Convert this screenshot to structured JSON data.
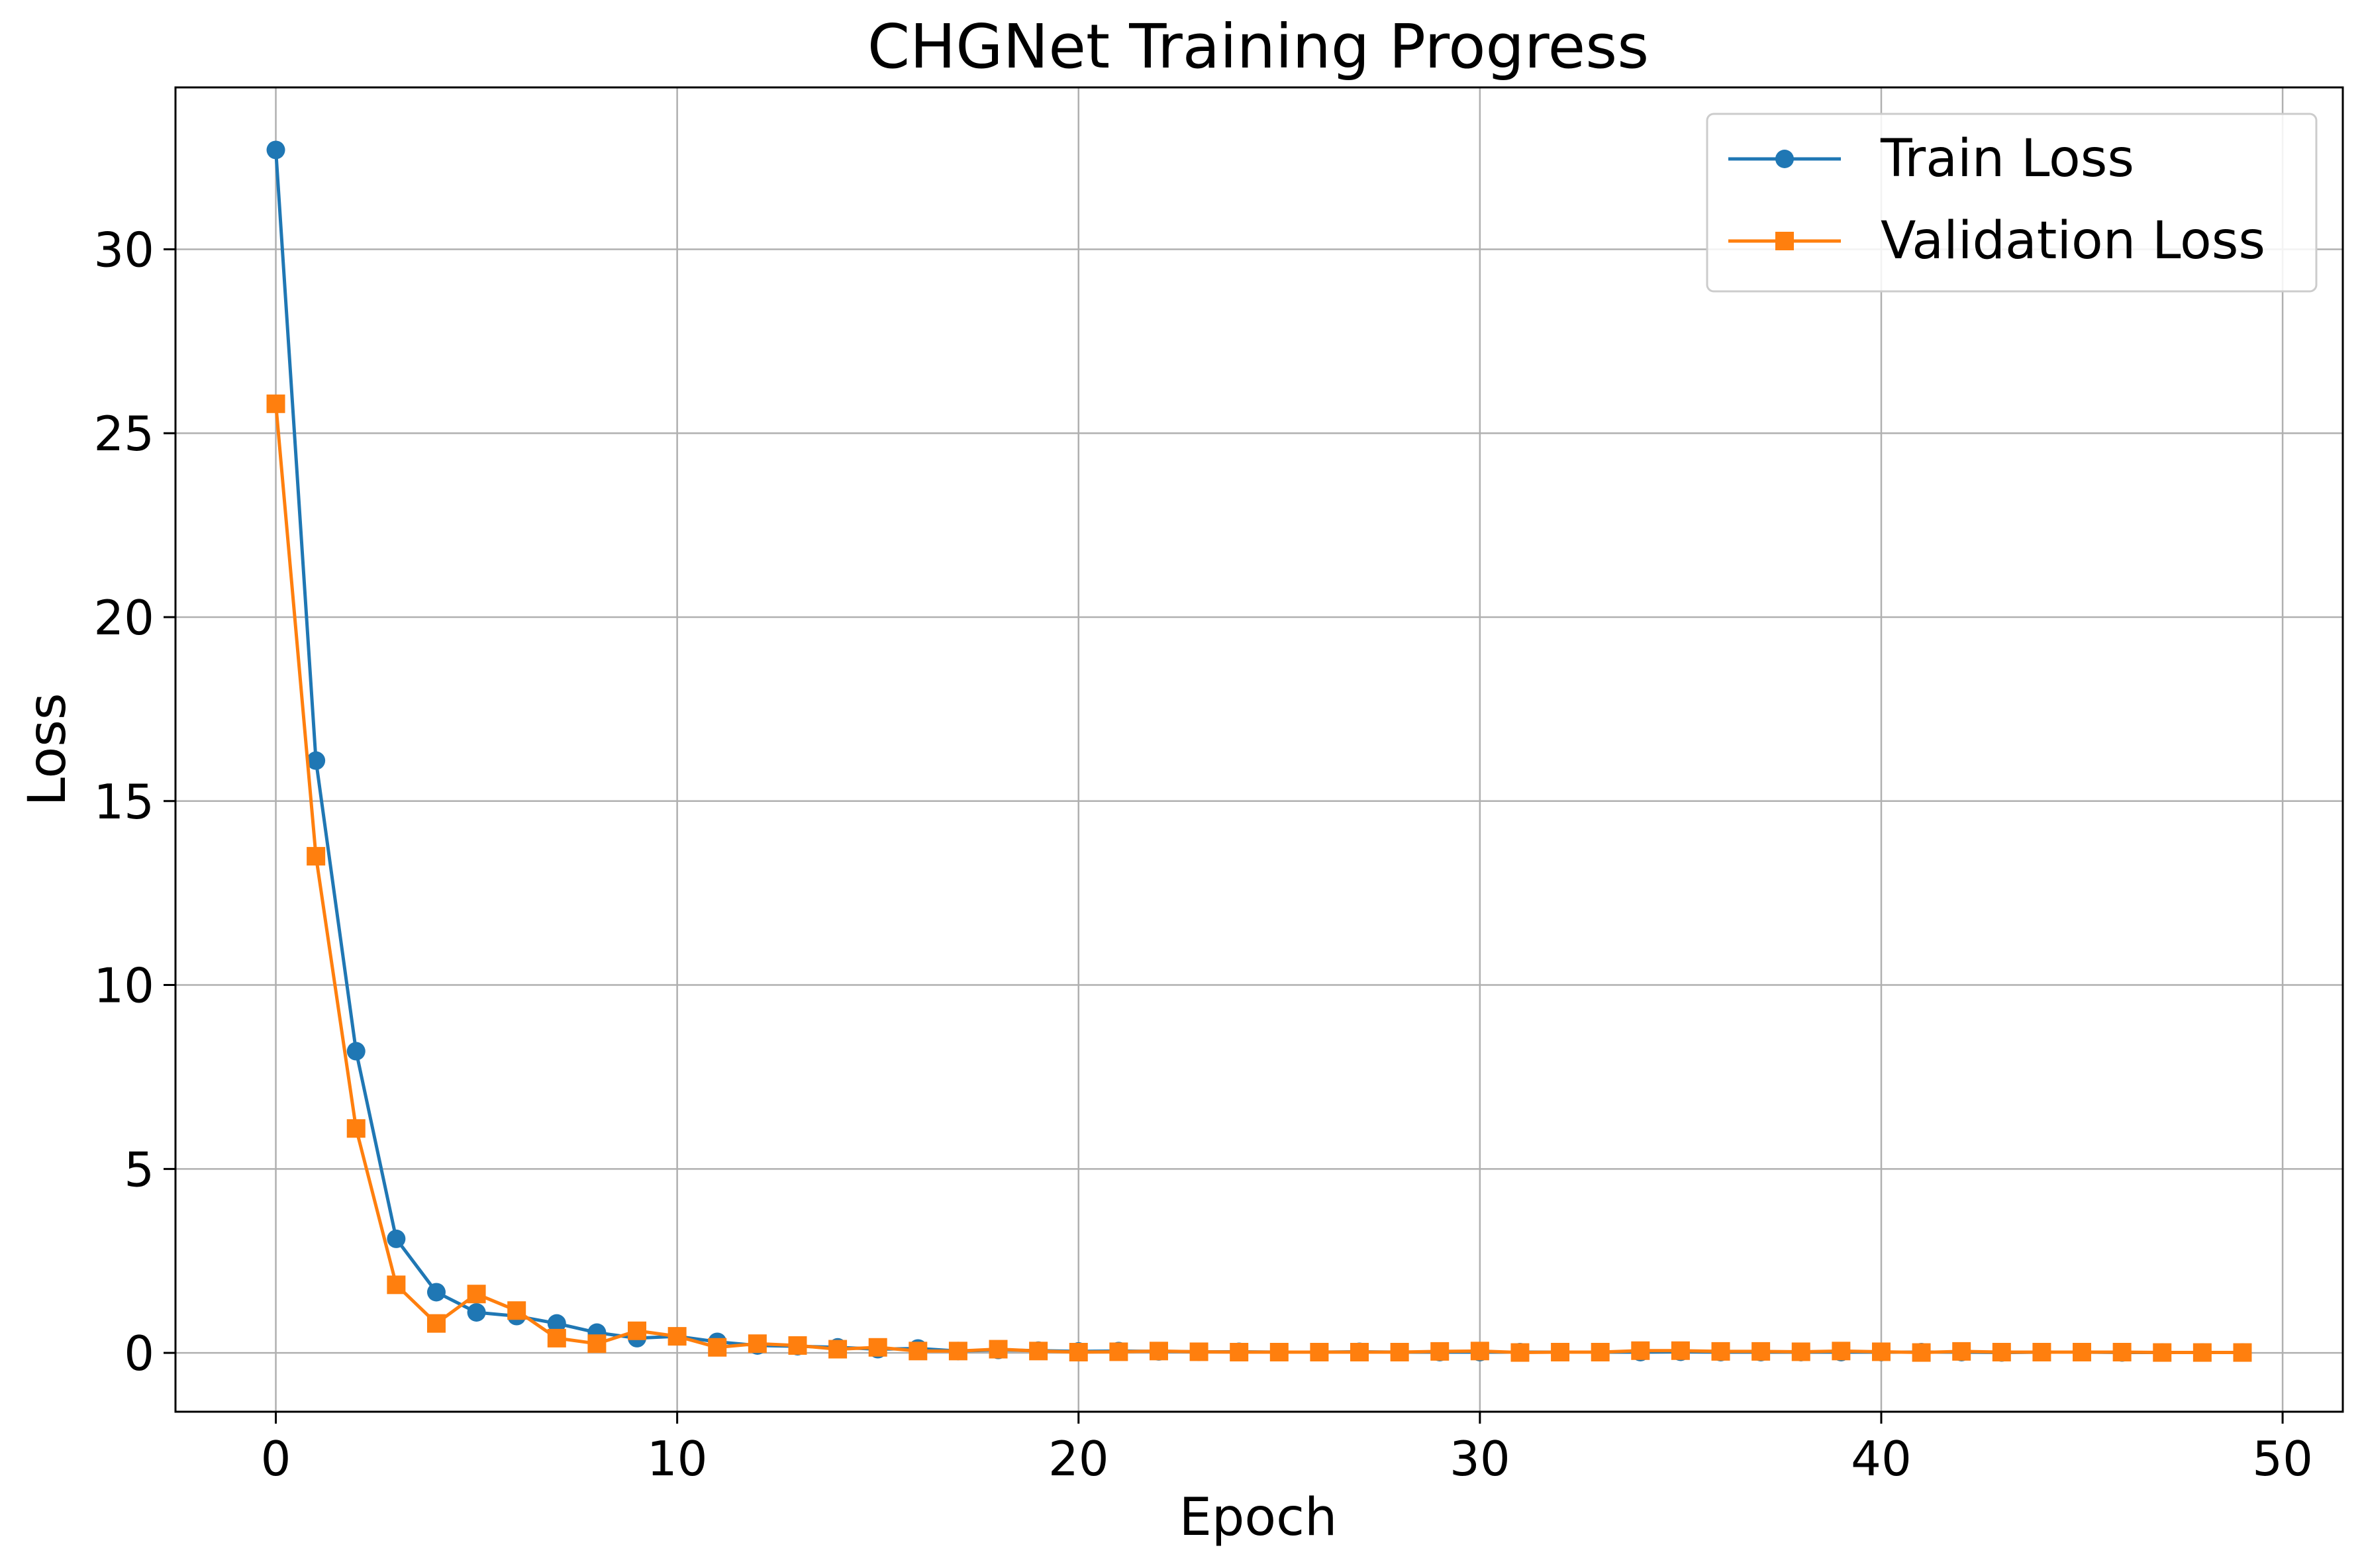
{
  "chart_data": {
    "type": "line",
    "title": "CHGNet Training Progress",
    "xlabel": "Epoch",
    "ylabel": "Loss",
    "xlim": [
      -2.5,
      51.5
    ],
    "ylim": [
      -1.6,
      34.4
    ],
    "xticks": [
      0,
      10,
      20,
      30,
      40,
      50
    ],
    "yticks": [
      0,
      5,
      10,
      15,
      20,
      25,
      30
    ],
    "grid": true,
    "legend_position": "top-right",
    "x": [
      0,
      1,
      2,
      3,
      4,
      5,
      6,
      7,
      8,
      9,
      10,
      11,
      12,
      13,
      14,
      15,
      16,
      17,
      18,
      19,
      20,
      21,
      22,
      23,
      24,
      25,
      26,
      27,
      28,
      29,
      30,
      31,
      32,
      33,
      34,
      35,
      36,
      37,
      38,
      39,
      40,
      41,
      42,
      43,
      44,
      45,
      46,
      47,
      48,
      49
    ],
    "series": [
      {
        "name": "Train Loss",
        "color": "#1f77b4",
        "marker": "circle",
        "values": [
          32.7,
          16.1,
          8.2,
          3.1,
          1.65,
          1.1,
          1.0,
          0.8,
          0.55,
          0.4,
          0.45,
          0.3,
          0.2,
          0.18,
          0.15,
          0.1,
          0.12,
          0.05,
          0.08,
          0.06,
          0.04,
          0.05,
          0.04,
          0.03,
          0.03,
          0.02,
          0.02,
          0.03,
          0.02,
          0.02,
          0.02,
          0.02,
          0.02,
          0.02,
          0.02,
          0.03,
          0.02,
          0.02,
          0.02,
          0.02,
          0.02,
          0.02,
          0.02,
          0.01,
          0.02,
          0.02,
          0.01,
          0.01,
          0.01,
          0.01
        ]
      },
      {
        "name": "Validation Loss",
        "color": "#ff7f0e",
        "marker": "square",
        "values": [
          25.8,
          13.5,
          6.1,
          1.85,
          0.8,
          1.6,
          1.15,
          0.4,
          0.25,
          0.6,
          0.45,
          0.15,
          0.25,
          0.2,
          0.1,
          0.15,
          0.05,
          0.05,
          0.1,
          0.05,
          0.02,
          0.03,
          0.05,
          0.03,
          0.02,
          0.02,
          0.02,
          0.02,
          0.02,
          0.04,
          0.05,
          0.01,
          0.02,
          0.02,
          0.06,
          0.06,
          0.04,
          0.04,
          0.03,
          0.05,
          0.03,
          0.01,
          0.04,
          0.02,
          0.02,
          0.02,
          0.02,
          0.01,
          0.01,
          0.01
        ]
      }
    ]
  }
}
